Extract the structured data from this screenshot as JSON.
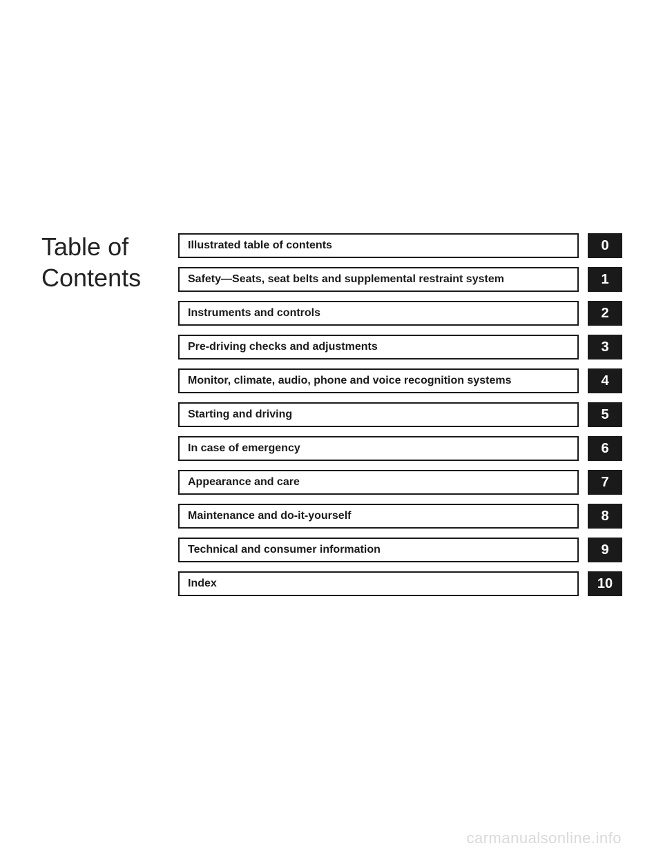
{
  "title_line1": "Table of",
  "title_line2": "Contents",
  "toc": [
    {
      "label": "Illustrated table of contents",
      "num": "0"
    },
    {
      "label": "Safety—Seats, seat belts and supplemental restraint system",
      "num": "1"
    },
    {
      "label": "Instruments and controls",
      "num": "2"
    },
    {
      "label": "Pre-driving checks and adjustments",
      "num": "3"
    },
    {
      "label": "Monitor, climate, audio, phone and voice recognition systems",
      "num": "4"
    },
    {
      "label": "Starting and driving",
      "num": "5"
    },
    {
      "label": "In case of emergency",
      "num": "6"
    },
    {
      "label": "Appearance and care",
      "num": "7"
    },
    {
      "label": "Maintenance and do-it-yourself",
      "num": "8"
    },
    {
      "label": "Technical and consumer information",
      "num": "9"
    },
    {
      "label": "Index",
      "num": "10"
    }
  ],
  "watermark": "carmanualsonline.info",
  "colors": {
    "background": "#ffffff",
    "text": "#1a1a1a",
    "tab_bg": "#1a1a1a",
    "tab_text": "#ffffff",
    "border": "#1a1a1a",
    "watermark": "#d9d9d9"
  }
}
